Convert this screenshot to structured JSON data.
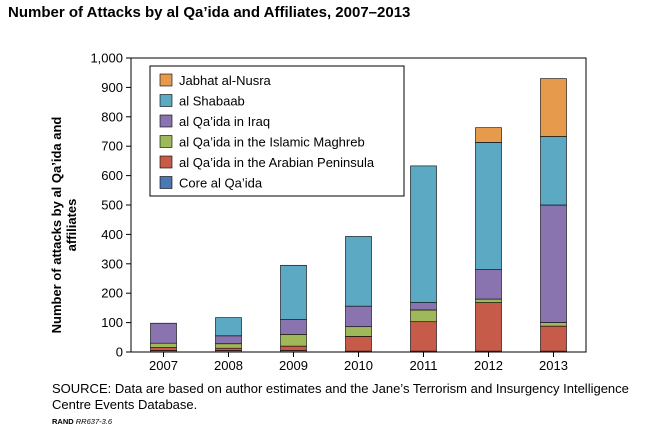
{
  "chart_data": {
    "type": "bar",
    "stacked": true,
    "title": "Number of Attacks by al Qa’ida and Affiliates, 2007–2013",
    "xlabel": "",
    "ylabel": "Number of attacks by al Qa’ida and affiliates",
    "ylim": [
      0,
      1000
    ],
    "yticks": [
      0,
      100,
      200,
      300,
      400,
      500,
      600,
      700,
      800,
      900,
      1000
    ],
    "ytick_labels": [
      "0",
      "100",
      "200",
      "300",
      "400",
      "500",
      "600",
      "700",
      "800",
      "900",
      "1,000"
    ],
    "categories": [
      "2007",
      "2008",
      "2009",
      "2010",
      "2011",
      "2012",
      "2013"
    ],
    "grid": false,
    "legend_position": "top-left",
    "series": [
      {
        "name": "Core al Qa’ida",
        "color": "#4a78b3",
        "values": [
          5,
          5,
          5,
          3,
          3,
          3,
          3
        ]
      },
      {
        "name": "al Qa’ida in the Arabian Peninsula",
        "color": "#c65b4a",
        "values": [
          10,
          8,
          15,
          50,
          100,
          165,
          85
        ]
      },
      {
        "name": "al Qa’ida in the Islamic Maghreb",
        "color": "#9fb85a",
        "values": [
          15,
          15,
          40,
          33,
          40,
          12,
          12
        ]
      },
      {
        "name": "al Qa’ida in Iraq",
        "color": "#8a74b0",
        "values": [
          68,
          27,
          50,
          70,
          25,
          100,
          400
        ]
      },
      {
        "name": "al Shabaab",
        "color": "#5ba9c2",
        "values": [
          0,
          62,
          185,
          237,
          465,
          433,
          233
        ]
      },
      {
        "name": "Jabhat al-Nusra",
        "color": "#e59a4c",
        "values": [
          0,
          0,
          0,
          0,
          0,
          50,
          197
        ]
      }
    ]
  },
  "source_note": "SOURCE: Data are based on author estimates and the Jane’s Terrorism and Insurgency Intelligence Centre Events Database.",
  "credit": {
    "brand": "RAND",
    "code": "RR637-3.6"
  }
}
